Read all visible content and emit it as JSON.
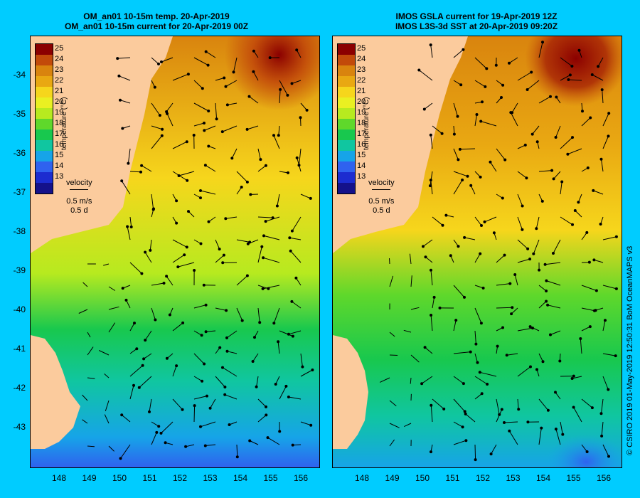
{
  "left_panel": {
    "title_line1": "OM_an01 10-15m temp. 20-Apr-2019",
    "title_line2": "OM_an01 10-15m current for 20-Apr-2019 00Z"
  },
  "right_panel": {
    "title_line1": "IMOS GSLA current for 19-Apr-2019 12Z",
    "title_line2": "IMOS L3S-3d SST at 20-Apr-2019 09:20Z"
  },
  "colorbar": {
    "title": "temperature (°C)",
    "ticks": [
      "25",
      "24",
      "23",
      "22",
      "21",
      "20",
      "19",
      "18",
      "17",
      "16",
      "15",
      "14",
      "13"
    ],
    "colors": [
      "#8b0000",
      "#c24a0a",
      "#d9840e",
      "#e9a812",
      "#f6d61c",
      "#eaf022",
      "#b7ea1f",
      "#5fd82b",
      "#18c84e",
      "#10c6a0",
      "#16a4e8",
      "#2f62ef",
      "#1c2cd0",
      "#14118a"
    ]
  },
  "velocity_legend": {
    "label": "velocity",
    "speed": "0.5 m/s",
    "duration": "0.5 d"
  },
  "lat_ticks": [
    "-34",
    "-35",
    "-36",
    "-37",
    "-38",
    "-39",
    "-40",
    "-41",
    "-42",
    "-43"
  ],
  "lon_ticks": [
    "148",
    "149",
    "150",
    "151",
    "152",
    "153",
    "154",
    "155",
    "156"
  ],
  "credit": "© CSIRO 2019   01-May-2019 12:50:31 BoM OceanMAPS v3",
  "land_color": "#fbcb9d"
}
